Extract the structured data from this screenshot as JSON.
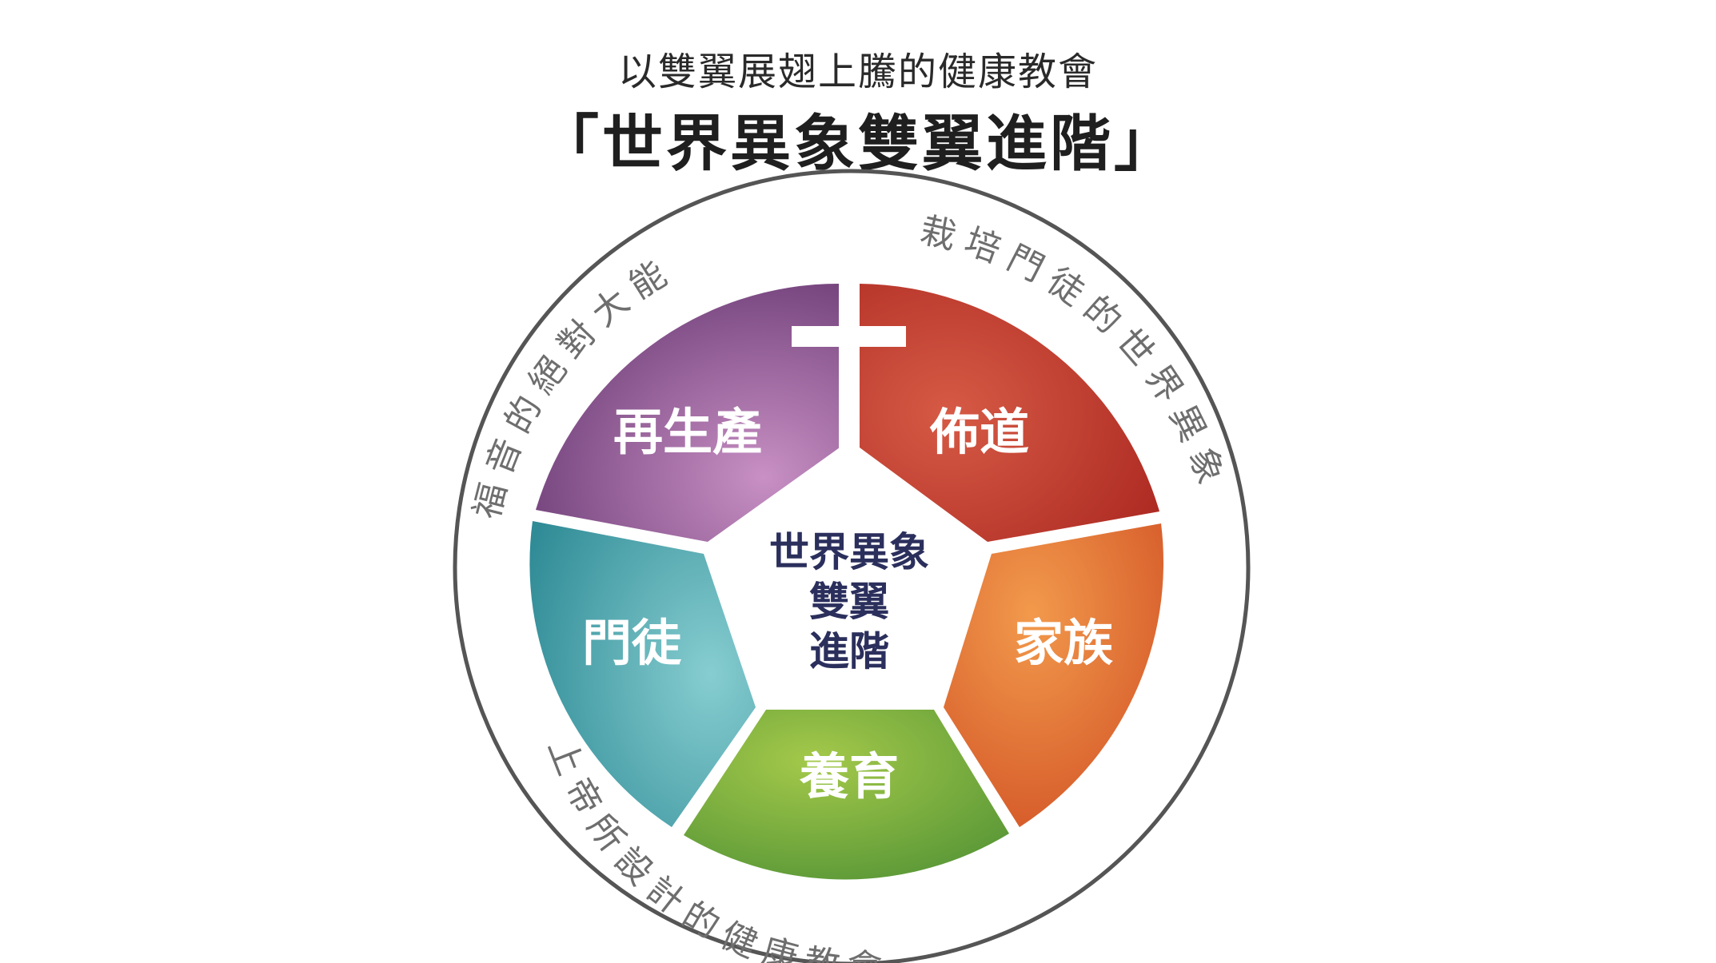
{
  "header": {
    "subtitle": "以雙翼展翅上騰的健康教會",
    "title": "「世界異象雙翼進階」"
  },
  "ring": {
    "top_left_text": "福音的絕對大能",
    "right_text": "栽培門徒的世界異象",
    "bottom_text": "上帝所設計的健康教會"
  },
  "segments": [
    {
      "label": "再生產",
      "color": "#9a5a9a"
    },
    {
      "label": "佈道",
      "color": "#c0392b"
    },
    {
      "label": "家族",
      "color": "#e2672e"
    },
    {
      "label": "養育",
      "color": "#6aa83a"
    },
    {
      "label": "門徒",
      "color": "#3e9ea6"
    }
  ],
  "center": {
    "line1": "世界異象",
    "line2": "雙翼",
    "line3": "進階"
  },
  "icons": {
    "cross": "cross-icon"
  }
}
